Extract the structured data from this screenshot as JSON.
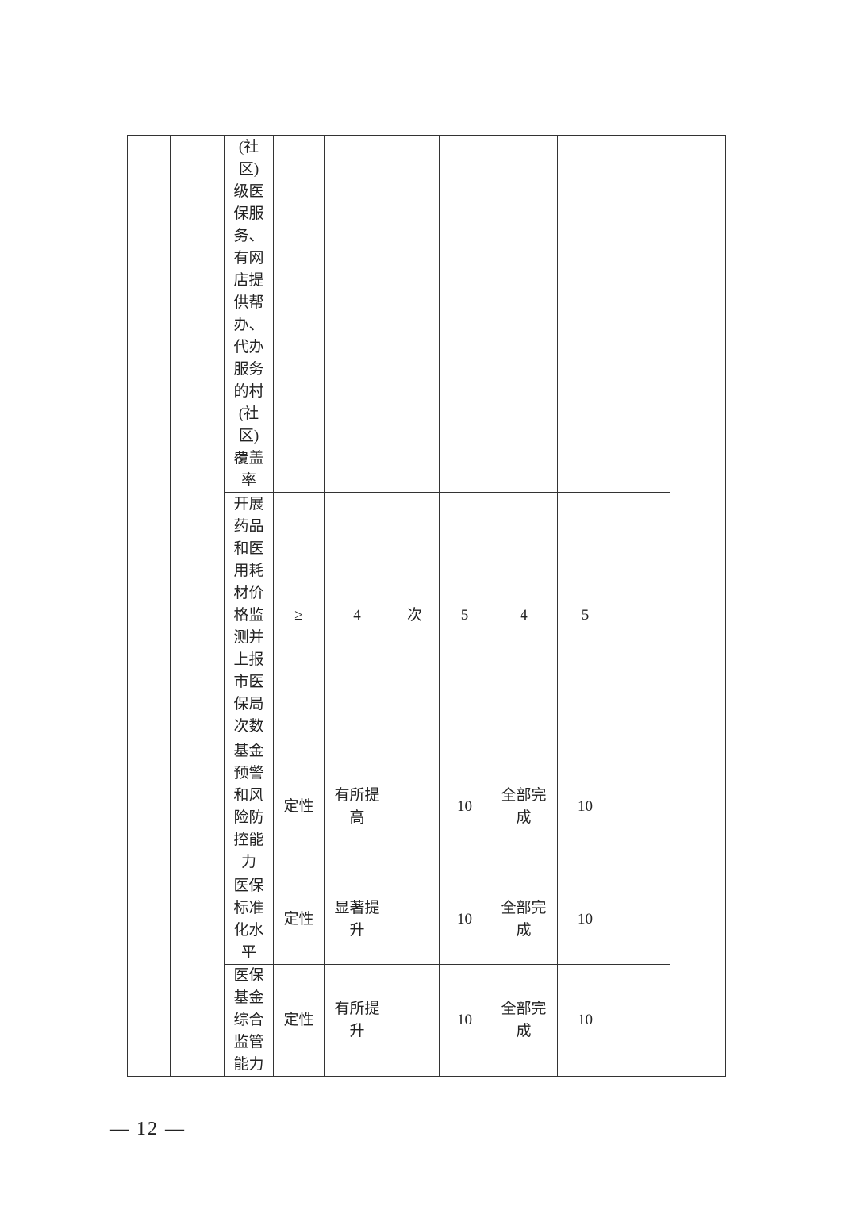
{
  "table": {
    "rows": [
      {
        "indicator": "(社区)级医保服务、有网店提供帮办、代办服务的村(社区)覆盖率",
        "operator": "",
        "target": "",
        "unit": "",
        "weight": "",
        "actual": "",
        "score": "",
        "remark": ""
      },
      {
        "indicator": "开展药品和医用耗材价格监测并上报市医保局次数",
        "operator": "≥",
        "target": "4",
        "unit": "次",
        "weight": "5",
        "actual": "4",
        "score": "5",
        "remark": ""
      },
      {
        "indicator": "基金预警和风险防控能力",
        "operator": "定性",
        "target": "有所提高",
        "unit": "",
        "weight": "10",
        "actual": "全部完成",
        "score": "10",
        "remark": ""
      },
      {
        "indicator": "医保标准化水平",
        "operator": "定性",
        "target": "显著提升",
        "unit": "",
        "weight": "10",
        "actual": "全部完成",
        "score": "10",
        "remark": ""
      },
      {
        "indicator": "医保基金综合监管能力",
        "operator": "定性",
        "target": "有所提升",
        "unit": "",
        "weight": "10",
        "actual": "全部完成",
        "score": "10",
        "remark": ""
      }
    ]
  },
  "page_number": "— 12 —"
}
